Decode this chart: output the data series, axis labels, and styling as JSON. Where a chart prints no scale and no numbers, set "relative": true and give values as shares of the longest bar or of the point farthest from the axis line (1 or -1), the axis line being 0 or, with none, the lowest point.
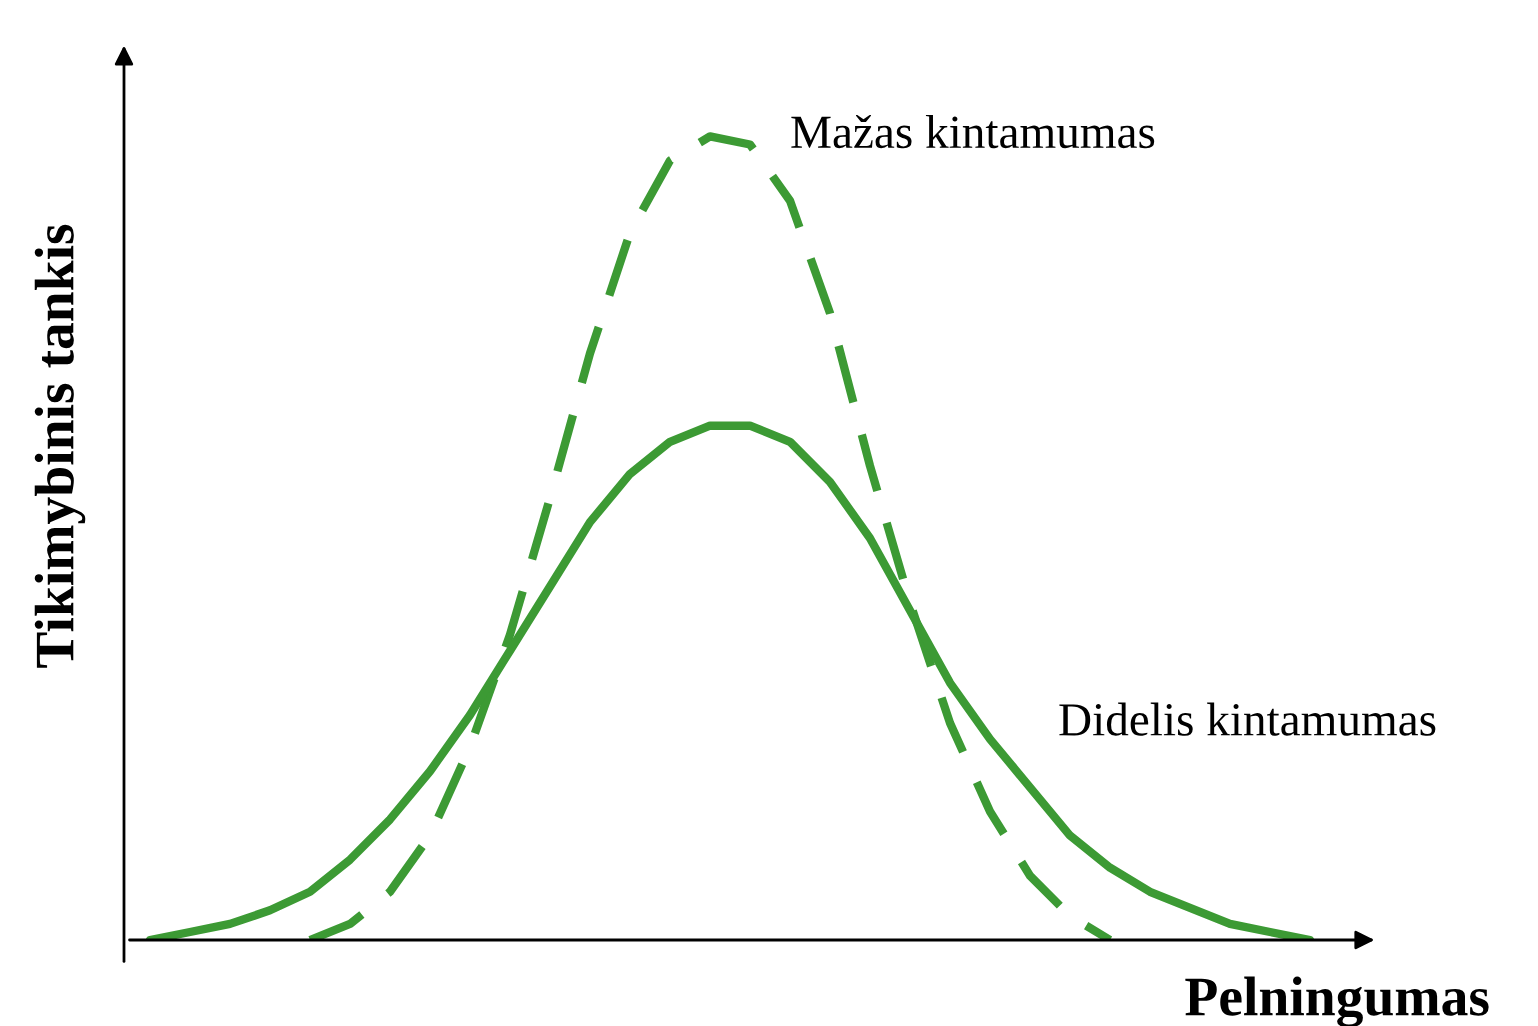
{
  "chart_data": {
    "type": "line",
    "relative": true,
    "xlabel": "Pelningumas",
    "ylabel": "Tikimybinis tankis",
    "categories": [
      null,
      null,
      null,
      null,
      null,
      null,
      null,
      null,
      null,
      null,
      null,
      null,
      null,
      null,
      null,
      null,
      null,
      null,
      null,
      null,
      null,
      null,
      null,
      null,
      null,
      null,
      null,
      null,
      null,
      null
    ],
    "series": [
      {
        "name": "Mažas kintamumas",
        "color": "#3c9a34",
        "line_style": "dashed",
        "values": [
          null,
          null,
          null,
          null,
          0,
          0.02,
          0.06,
          0.13,
          0.24,
          0.38,
          0.55,
          0.73,
          0.88,
          0.97,
          1.0,
          0.99,
          0.92,
          0.78,
          0.59,
          0.42,
          0.27,
          0.16,
          0.08,
          0.03,
          0,
          null,
          null,
          null,
          null,
          null
        ]
      },
      {
        "name": "Didelis kintamumas",
        "color": "#3c9a34",
        "line_style": "solid",
        "values": [
          0,
          0.01,
          0.02,
          0.037,
          0.06,
          0.1,
          0.15,
          0.21,
          0.28,
          0.36,
          0.44,
          0.52,
          0.58,
          0.62,
          0.64,
          0.64,
          0.62,
          0.57,
          0.5,
          0.41,
          0.32,
          0.25,
          0.19,
          0.13,
          0.09,
          0.06,
          0.04,
          0.02,
          0.01,
          0
        ]
      }
    ]
  }
}
